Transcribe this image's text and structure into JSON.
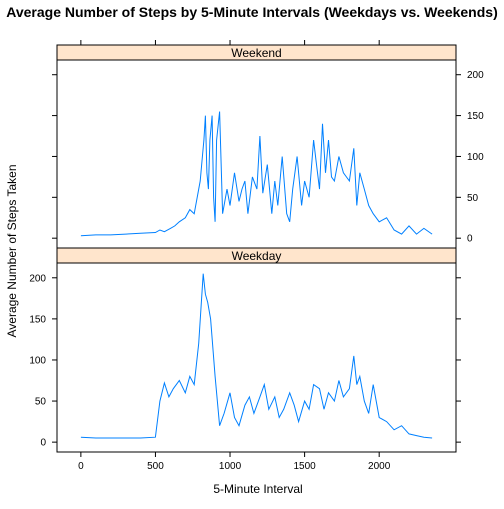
{
  "chart_data": {
    "type": "line",
    "title": "Average Number of Steps by 5-Minute Intervals (Weekdays vs. Weekends)",
    "xlabel": "5-Minute Interval",
    "ylabel": "Average Number of Steps Taken",
    "xlim": [
      -160,
      2515
    ],
    "x_ticks": [
      0,
      500,
      1000,
      1500,
      2000
    ],
    "ylim": [
      -12,
      218
    ],
    "y_ticks": [
      0,
      50,
      100,
      150,
      200
    ],
    "y_ticks_weekday": [
      "0",
      "50",
      "100",
      "150",
      "200"
    ],
    "y_ticks_weekend": [
      "0",
      "50",
      "100",
      "150",
      "200"
    ],
    "x_tick_labels": [
      "0",
      "500",
      "1000",
      "1500",
      "2000"
    ],
    "grid": false,
    "strip_color": "#ffe5cc",
    "line_color": "#0080ff",
    "panels": [
      {
        "strip_label": "Weekend",
        "x": [
          0,
          100,
          200,
          300,
          400,
          500,
          530,
          560,
          600,
          630,
          660,
          700,
          730,
          760,
          800,
          815,
          825,
          835,
          845,
          855,
          865,
          880,
          890,
          900,
          910,
          930,
          950,
          980,
          1000,
          1030,
          1060,
          1080,
          1100,
          1120,
          1150,
          1180,
          1200,
          1220,
          1250,
          1280,
          1300,
          1320,
          1350,
          1380,
          1400,
          1420,
          1450,
          1480,
          1500,
          1530,
          1560,
          1580,
          1600,
          1620,
          1640,
          1660,
          1680,
          1700,
          1730,
          1760,
          1800,
          1830,
          1850,
          1870,
          1900,
          1930,
          1960,
          2000,
          2050,
          2100,
          2150,
          2200,
          2250,
          2300,
          2355
        ],
        "y": [
          3,
          4,
          4,
          5,
          6,
          7,
          10,
          8,
          12,
          15,
          20,
          25,
          35,
          30,
          70,
          100,
          120,
          150,
          80,
          60,
          120,
          150,
          50,
          20,
          120,
          155,
          30,
          60,
          40,
          80,
          45,
          60,
          70,
          30,
          75,
          60,
          125,
          55,
          90,
          30,
          70,
          40,
          100,
          30,
          20,
          60,
          100,
          40,
          70,
          50,
          120,
          90,
          60,
          140,
          80,
          120,
          75,
          70,
          100,
          80,
          70,
          110,
          40,
          80,
          60,
          40,
          30,
          20,
          25,
          10,
          5,
          15,
          5,
          12,
          5
        ]
      },
      {
        "strip_label": "Weekday",
        "x": [
          0,
          100,
          200,
          300,
          400,
          500,
          530,
          560,
          590,
          620,
          660,
          700,
          730,
          760,
          790,
          820,
          835,
          850,
          870,
          900,
          930,
          960,
          1000,
          1030,
          1060,
          1100,
          1130,
          1160,
          1200,
          1230,
          1260,
          1300,
          1330,
          1360,
          1400,
          1430,
          1460,
          1500,
          1530,
          1560,
          1600,
          1630,
          1660,
          1700,
          1730,
          1760,
          1800,
          1830,
          1850,
          1870,
          1900,
          1930,
          1960,
          2000,
          2050,
          2100,
          2150,
          2200,
          2250,
          2300,
          2355
        ],
        "y": [
          6,
          5,
          5,
          5,
          5,
          6,
          50,
          72,
          55,
          65,
          75,
          60,
          80,
          70,
          120,
          205,
          180,
          170,
          150,
          80,
          20,
          35,
          60,
          30,
          20,
          45,
          55,
          35,
          55,
          70,
          40,
          55,
          30,
          40,
          60,
          45,
          25,
          50,
          40,
          70,
          65,
          40,
          60,
          50,
          75,
          55,
          65,
          105,
          70,
          80,
          50,
          35,
          70,
          30,
          25,
          15,
          20,
          10,
          8,
          6,
          5
        ]
      }
    ]
  }
}
